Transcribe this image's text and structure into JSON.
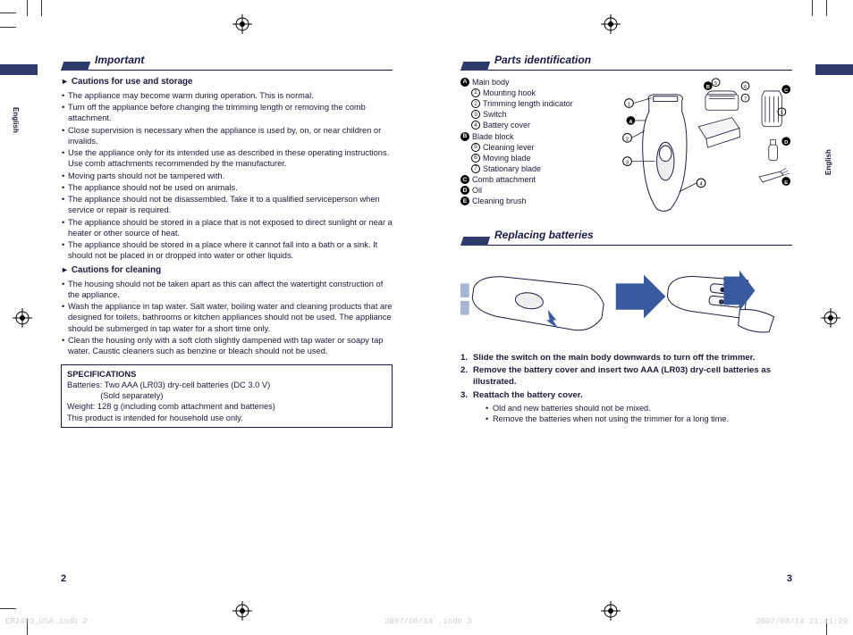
{
  "lang_left": "English",
  "lang_right": "English",
  "page_left_num": "2",
  "page_right_num": "3",
  "sections": {
    "important": {
      "title": "Important",
      "cautions_use_head": "Cautions for use and storage",
      "cautions_use": [
        "The appliance may become warm during operation. This is normal.",
        "Turn off the appliance before changing the trimming length or removing the comb attachment.",
        "Close supervision is necessary when the appliance is used by, on, or near children or invalids.",
        "Use the appliance only for its intended use as described in these operating instructions. Use comb attachments recommended by the manufacturer.",
        "Moving parts should not be tampered with.",
        "The appliance should not be used on animals.",
        "The appliance should not be disassembled. Take it to a qualified serviceperson when service or repair is required.",
        "The appliance should be stored in a place that is not exposed to direct sunlight or near a heater or other source of heat.",
        "The appliance should be stored in a place where it cannot fall into a bath or a sink. It should not be placed in or dropped into water or other liquids."
      ],
      "cautions_clean_head": "Cautions for cleaning",
      "cautions_clean": [
        "The housing should not be taken apart as this can affect the watertight construction of the appliance.",
        "Wash the appliance in tap water. Salt water, boiling water and cleaning products that are designed for toilets, bathrooms or kitchen appliances should not be used. The appliance should be submerged in tap water for a short time only.",
        "Clean the housing only with a soft cloth slightly dampened with tap water or soapy tap water. Caustic cleaners such as benzine or bleach should not be used."
      ],
      "spec_title": "SPECIFICATIONS",
      "spec_lines": [
        "Batteries: Two AAA (LR03) dry-cell batteries (DC 3.0 V)",
        "    (Sold separately)",
        "Weight: 128 g (including comb attachment and batteries)",
        "This product is intended for household use only."
      ]
    },
    "parts": {
      "title": "Parts identification",
      "items": [
        {
          "tag": "A",
          "label": "Main body",
          "sub": [
            {
              "n": "1",
              "label": "Mounting hook"
            },
            {
              "n": "2",
              "label": "Trimming length indicator"
            },
            {
              "n": "3",
              "label": "Switch"
            },
            {
              "n": "4",
              "label": "Battery cover"
            }
          ]
        },
        {
          "tag": "B",
          "label": "Blade block",
          "sub": [
            {
              "n": "5",
              "label": "Cleaning lever"
            },
            {
              "n": "6",
              "label": "Moving blade"
            },
            {
              "n": "7",
              "label": "Stationary blade"
            }
          ]
        },
        {
          "tag": "C",
          "label": "Comb attachment"
        },
        {
          "tag": "D",
          "label": "Oil"
        },
        {
          "tag": "E",
          "label": "Cleaning brush"
        }
      ]
    },
    "replace": {
      "title": "Replacing batteries",
      "steps": [
        "Slide the switch on the main body downwards to turn off the trimmer.",
        "Remove the battery cover and insert two AAA (LR03) dry-cell batteries as illustrated.",
        "Reattach the battery cover."
      ],
      "notes": [
        "Old and new batteries should not be mixed.",
        "Remove the batteries when not using the trimmer for a long time."
      ]
    }
  },
  "footer": {
    "left_file": "ER2403_USA.indb   2",
    "center_date": "2007/06/14",
    "right_file": ".indb   3",
    "right_ts": "2007/06/14   21:41:29"
  },
  "colors": {
    "text": "#1a1a3a",
    "accent": "#2d3a6a",
    "diagram_blue": "#a7b6d6",
    "arrow_blue": "#3a5aa0",
    "footer_grey": "#d0d0d0"
  }
}
